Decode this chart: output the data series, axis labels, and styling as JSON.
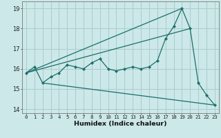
{
  "title": "",
  "xlabel": "Humidex (Indice chaleur)",
  "xlim": [
    -0.5,
    23.5
  ],
  "ylim": [
    13.8,
    19.35
  ],
  "yticks": [
    14,
    15,
    16,
    17,
    18,
    19
  ],
  "xticks": [
    0,
    1,
    2,
    3,
    4,
    5,
    6,
    7,
    8,
    9,
    10,
    11,
    12,
    13,
    14,
    15,
    16,
    17,
    18,
    19,
    20,
    21,
    22,
    23
  ],
  "bg_color": "#cce8e8",
  "grid_color": "#aacccc",
  "line_color": "#1a6e6a",
  "series_main": {
    "x": [
      0,
      1,
      2,
      3,
      4,
      5,
      6,
      7,
      8,
      9,
      10,
      11,
      12,
      13,
      14,
      15,
      16,
      17,
      18,
      19,
      20,
      21,
      22,
      23
    ],
    "y": [
      15.8,
      16.1,
      15.3,
      15.6,
      15.8,
      16.2,
      16.1,
      16.0,
      16.3,
      16.5,
      16.0,
      15.9,
      16.0,
      16.1,
      16.0,
      16.1,
      16.4,
      17.5,
      18.1,
      19.0,
      18.0,
      15.3,
      14.7,
      14.2
    ]
  },
  "line_upper": {
    "x": [
      0,
      19
    ],
    "y": [
      15.8,
      19.0
    ]
  },
  "line_lower": {
    "x": [
      2,
      23
    ],
    "y": [
      15.3,
      14.2
    ]
  },
  "line_mid": {
    "x": [
      0,
      20
    ],
    "y": [
      15.8,
      18.0
    ]
  }
}
